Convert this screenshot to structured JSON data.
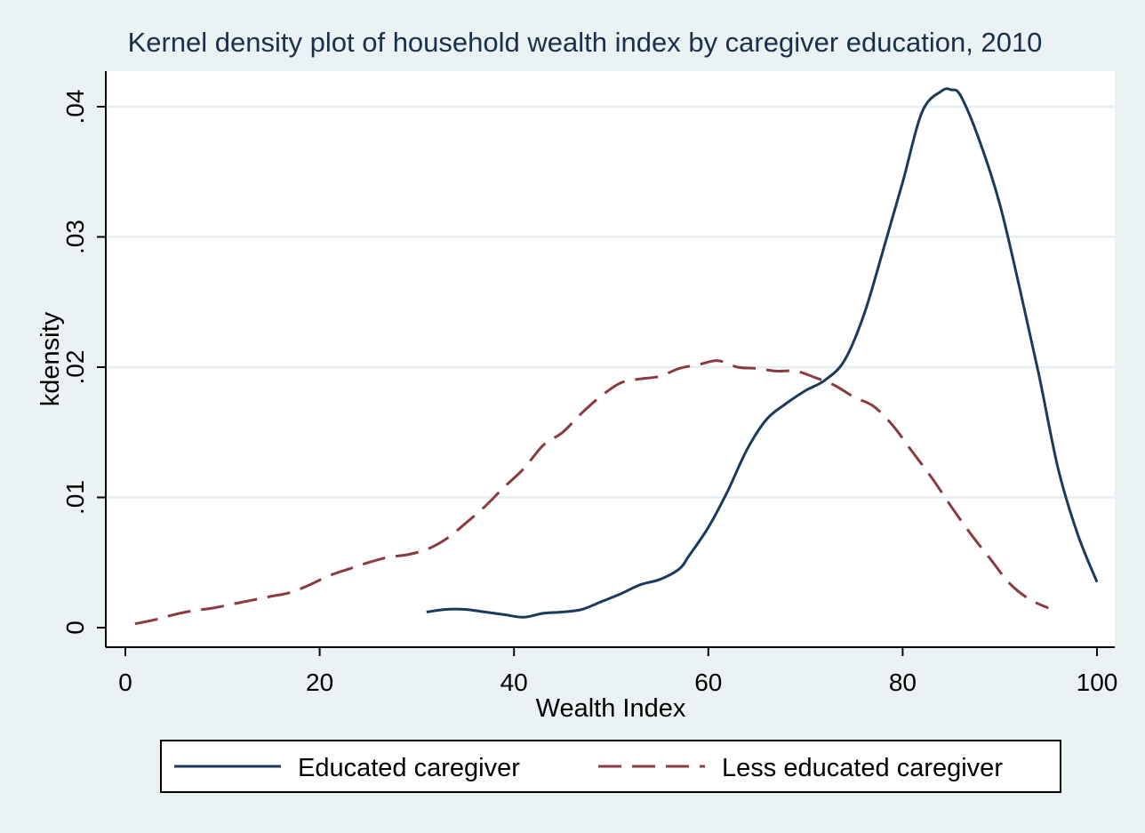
{
  "chart_data": {
    "type": "line",
    "title": "Kernel density plot of household wealth index by caregiver education, 2010",
    "xlabel": "Wealth Index",
    "ylabel": "kdensity",
    "xlim": [
      0,
      100
    ],
    "ylim": [
      0,
      0.04
    ],
    "xticks": [
      0,
      20,
      40,
      60,
      80,
      100
    ],
    "xtick_labels": [
      "0",
      "20",
      "40",
      "60",
      "80",
      "100"
    ],
    "yticks": [
      0,
      0.01,
      0.02,
      0.03,
      0.04
    ],
    "ytick_labels": [
      "0",
      ".01",
      ".02",
      ".03",
      ".04"
    ],
    "grid": true,
    "legend_position": "bottom",
    "colors": {
      "background": "#eaf2f3",
      "plot_area": "#ffffff",
      "grid": "#e6eef1"
    },
    "series": [
      {
        "name": "Educated caregiver",
        "color": "#1a3a5c",
        "dash": "solid",
        "x": [
          31,
          33,
          35,
          37,
          39,
          41,
          43,
          45,
          47,
          49,
          51,
          53,
          55,
          57,
          58,
          60,
          62,
          64,
          66,
          68,
          70,
          72,
          74,
          76,
          78,
          80,
          82,
          84,
          85,
          86,
          88,
          90,
          92,
          94,
          96,
          98,
          100
        ],
        "y": [
          0.0012,
          0.0014,
          0.0014,
          0.0012,
          0.001,
          0.0008,
          0.0011,
          0.0012,
          0.0014,
          0.002,
          0.0026,
          0.0033,
          0.0037,
          0.0045,
          0.0055,
          0.0077,
          0.0105,
          0.0137,
          0.016,
          0.0172,
          0.0182,
          0.019,
          0.0205,
          0.024,
          0.029,
          0.0342,
          0.0396,
          0.0412,
          0.0413,
          0.0408,
          0.0372,
          0.0325,
          0.0262,
          0.0195,
          0.0122,
          0.0072,
          0.0035
        ]
      },
      {
        "name": "Less educated caregiver",
        "color": "#8b3a3f",
        "dash": "dashed",
        "x": [
          1,
          3,
          5,
          7,
          9,
          11,
          13,
          15,
          17,
          19,
          21,
          23,
          25,
          27,
          29,
          31,
          33,
          35,
          37,
          39,
          41,
          43,
          45,
          47,
          49,
          51,
          53,
          55,
          57,
          59,
          61,
          63,
          65,
          67,
          69,
          71,
          73,
          75,
          77,
          79,
          81,
          83,
          85,
          87,
          89,
          91,
          93,
          95
        ],
        "y": [
          0.0003,
          0.0006,
          0.001,
          0.0013,
          0.0015,
          0.0018,
          0.0021,
          0.0024,
          0.0027,
          0.0033,
          0.004,
          0.0045,
          0.005,
          0.0054,
          0.0056,
          0.006,
          0.0068,
          0.008,
          0.0093,
          0.0108,
          0.0122,
          0.014,
          0.015,
          0.0165,
          0.0178,
          0.0188,
          0.0191,
          0.0193,
          0.0199,
          0.0202,
          0.0205,
          0.02,
          0.0199,
          0.0197,
          0.0197,
          0.0192,
          0.0186,
          0.0177,
          0.017,
          0.0155,
          0.0135,
          0.0115,
          0.0093,
          0.0072,
          0.0053,
          0.0034,
          0.0022,
          0.0015
        ]
      }
    ]
  }
}
